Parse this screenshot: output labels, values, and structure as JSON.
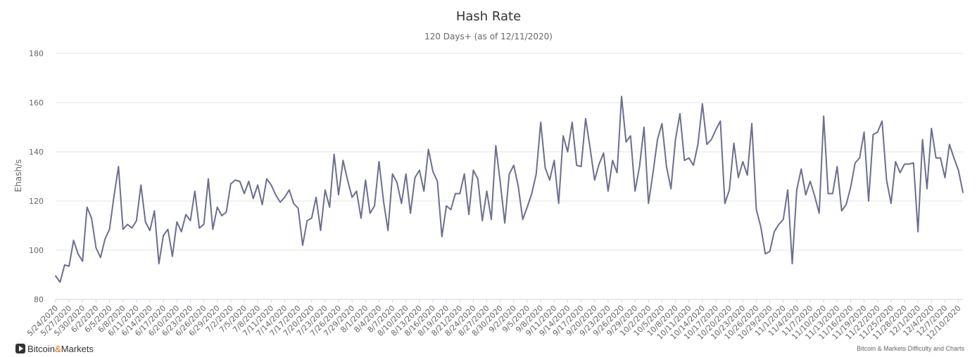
{
  "chart_data": {
    "type": "line",
    "title": "Hash Rate",
    "subtitle": "120 Days+ (as of 12/11/2020)",
    "ylabel": "Ehash/s",
    "ylim": [
      80,
      180
    ],
    "yticks": [
      80,
      100,
      120,
      140,
      160,
      180
    ],
    "grid": true,
    "legend": "none",
    "colors": {
      "series": "#6b6f8f",
      "grid": "#e6e6e6",
      "text": "#666666",
      "title": "#333333"
    },
    "xtick_labels": [
      "5/24/2020",
      "5/27/2020",
      "5/30/2020",
      "6/2/2020",
      "6/5/2020",
      "6/8/2020",
      "6/11/2020",
      "6/14/2020",
      "6/17/2020",
      "6/20/2020",
      "6/23/2020",
      "6/26/2020",
      "6/29/2020",
      "7/2/2020",
      "7/5/2020",
      "7/8/2020",
      "7/11/2020",
      "7/14/2020",
      "7/17/2020",
      "7/20/2020",
      "7/23/2020",
      "7/26/2020",
      "7/29/2020",
      "8/1/2020",
      "8/4/2020",
      "8/7/2020",
      "8/10/2020",
      "8/13/2020",
      "8/16/2020",
      "8/19/2020",
      "8/21/2020",
      "8/24/2020",
      "8/27/2020",
      "8/30/2020",
      "9/2/2020",
      "9/5/2020",
      "9/8/2020",
      "9/11/2020",
      "9/14/2020",
      "9/17/2020",
      "9/20/2020",
      "9/23/2020",
      "9/26/2020",
      "9/29/2020",
      "10/2/2020",
      "10/5/2020",
      "10/8/2020",
      "10/11/2020",
      "10/14/2020",
      "10/17/2020",
      "10/20/2020",
      "10/23/2020",
      "10/26/2020",
      "10/29/2020",
      "11/1/2020",
      "11/4/2020",
      "11/7/2020",
      "11/10/2020",
      "11/13/2020",
      "11/16/2020",
      "11/19/2020",
      "11/22/2020",
      "11/25/2020",
      "11/28/2020",
      "12/1/2020",
      "12/4/2020",
      "12/7/2020",
      "12/10/2020"
    ],
    "series": [
      {
        "values": [
          89.5,
          87,
          94,
          93.5,
          104,
          98.5,
          95.5,
          117.5,
          113,
          101,
          97,
          104.5,
          108.5,
          122,
          134,
          108.5,
          110.5,
          109,
          112,
          126.5,
          111.5,
          108,
          116,
          94.5,
          106,
          108.5,
          97.5,
          111.5,
          107.5,
          114.5,
          112,
          124,
          109,
          110.5,
          129,
          108.5,
          117.5,
          114,
          115.5,
          127,
          128.5,
          128,
          123,
          128,
          121,
          126.5,
          118.5,
          129,
          126.5,
          122.5,
          119.5,
          121.5,
          124.5,
          119,
          117,
          102,
          112,
          113,
          121.5,
          108,
          124.5,
          117.5,
          139,
          122.5,
          136.5,
          128.5,
          121.5,
          124,
          113,
          128.5,
          115,
          118,
          136,
          120,
          108,
          131,
          127.5,
          119,
          131,
          115,
          129.5,
          132.5,
          124,
          141,
          132,
          128,
          105.5,
          118,
          116.5,
          123,
          123,
          131,
          114.5,
          132.5,
          129,
          112,
          124,
          112.5,
          142.5,
          127.5,
          111,
          131,
          134.5,
          126,
          112.5,
          117.5,
          123,
          131,
          152,
          133.5,
          128.5,
          136.5,
          119,
          146.5,
          140,
          152,
          134.5,
          134,
          153.5,
          141.5,
          128.5,
          135,
          139.5,
          124,
          136.5,
          131.5,
          162.5,
          144,
          146.5,
          124,
          134,
          150,
          119,
          131.5,
          145,
          151.5,
          134,
          125,
          145,
          155.5,
          136.5,
          137.5,
          134.5,
          143,
          159.5,
          143,
          145,
          149,
          152.5,
          119,
          124.5,
          143.5,
          129.5,
          136,
          130.5,
          151.5,
          116.5,
          109.5,
          98.5,
          99.5,
          107.5,
          110.5,
          112.5,
          124.5,
          94.5,
          124.5,
          133,
          122.5,
          128,
          122,
          115,
          154.5,
          123,
          123,
          134,
          116,
          118.5,
          125.5,
          135.5,
          137.5,
          148,
          120,
          147,
          148,
          152.5,
          128.5,
          119,
          136,
          131.5,
          135,
          135,
          135.5,
          107.5,
          145,
          125,
          149.5,
          137.5,
          137.5,
          129.5,
          143,
          137.5,
          132.5,
          123.5
        ]
      }
    ]
  },
  "branding": {
    "logo_text_1": "Bitcoin",
    "logo_amp": "&",
    "logo_text_2": "Markets"
  },
  "credits": "Bitcoin & Markets Difficulty and Charts"
}
